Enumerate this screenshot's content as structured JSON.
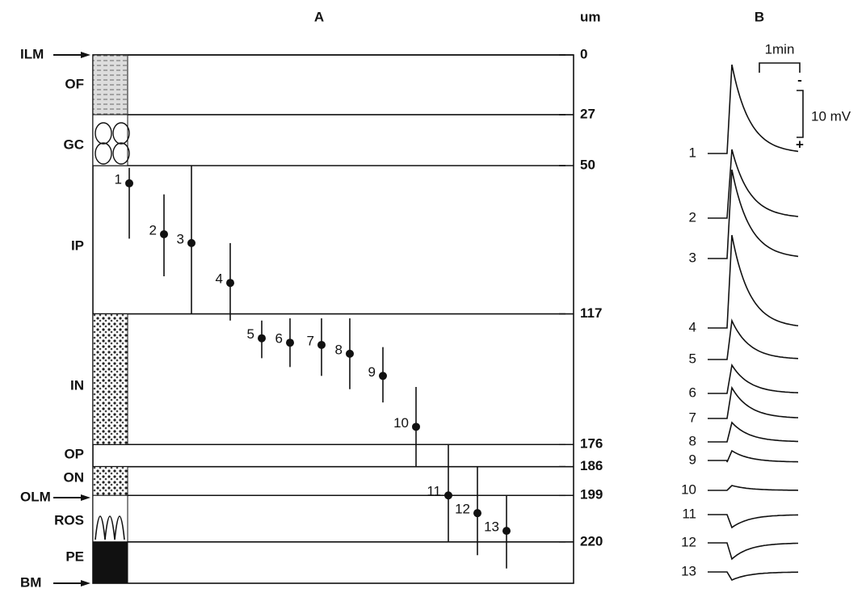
{
  "panel_a": {
    "title": "A",
    "unit": "um",
    "depth_ticks": [
      0,
      27,
      50,
      117,
      176,
      186,
      199,
      220
    ],
    "layers": [
      "OF",
      "GC",
      "IP",
      "IN",
      "OP",
      "ON",
      "ROS",
      "PE"
    ],
    "markers": [
      "ILM",
      "OLM",
      "BM"
    ],
    "recordings": [
      {
        "label": "1",
        "depth": 58,
        "range": [
          51,
          83
        ]
      },
      {
        "label": "2",
        "depth": 81,
        "range": [
          63,
          100
        ]
      },
      {
        "label": "3",
        "depth": 85,
        "range": [
          50,
          117
        ]
      },
      {
        "label": "4",
        "depth": 103,
        "range": [
          85,
          120
        ]
      },
      {
        "label": "5",
        "depth": 128,
        "range": [
          120,
          137
        ]
      },
      {
        "label": "6",
        "depth": 130,
        "range": [
          119,
          141
        ]
      },
      {
        "label": "7",
        "depth": 131,
        "range": [
          119,
          145
        ]
      },
      {
        "label": "8",
        "depth": 135,
        "range": [
          119,
          151
        ]
      },
      {
        "label": "9",
        "depth": 145,
        "range": [
          132,
          157
        ]
      },
      {
        "label": "10",
        "depth": 168,
        "range": [
          150,
          186
        ]
      },
      {
        "label": "11",
        "depth": 199,
        "range": [
          176,
          220
        ]
      },
      {
        "label": "12",
        "depth": 207,
        "range": [
          186,
          226
        ]
      },
      {
        "label": "13",
        "depth": 215,
        "range": [
          199,
          232
        ]
      }
    ]
  },
  "panel_b": {
    "title": "B",
    "time_scale": "1min",
    "voltage_scale": "10 mV",
    "minus": "-",
    "plus": "+",
    "trace_labels": [
      "1",
      "2",
      "3",
      "4",
      "5",
      "6",
      "7",
      "8",
      "9",
      "10",
      "11",
      "12",
      "13"
    ]
  }
}
